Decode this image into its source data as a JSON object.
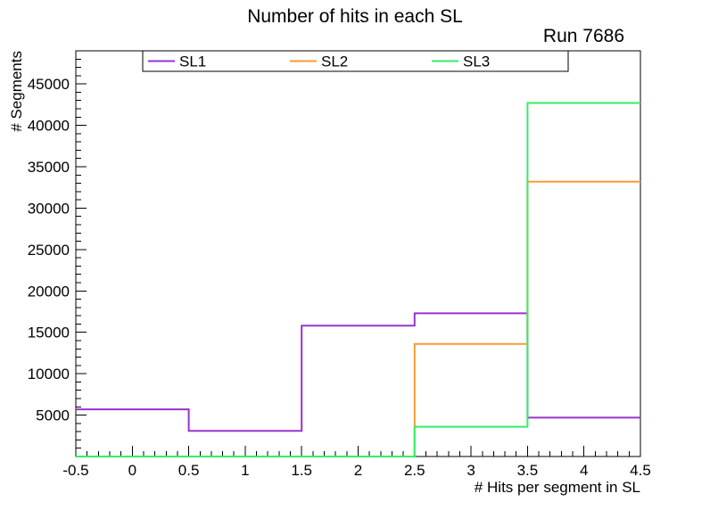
{
  "title": "Number of hits in each SL",
  "run_label": "Run 7686",
  "chart_data": {
    "type": "step-histogram",
    "title": "Number of hits in each SL",
    "annotation": "Run 7686",
    "xlabel": "# Hits per segment in SL",
    "ylabel": "# Segments",
    "xlim": [
      -0.5,
      4.5
    ],
    "ylim": [
      0,
      49000
    ],
    "grid": false,
    "bin_edges": [
      -0.5,
      0.5,
      1.5,
      2.5,
      3.5,
      4.5
    ],
    "series": [
      {
        "name": "SL1",
        "color": "#9933cc",
        "values": [
          5700,
          3100,
          15800,
          17300,
          4700
        ]
      },
      {
        "name": "SL2",
        "color": "#ff9933",
        "values": [
          0,
          0,
          0,
          13600,
          33200
        ]
      },
      {
        "name": "SL3",
        "color": "#33ee66",
        "values": [
          0,
          0,
          0,
          3600,
          42700
        ]
      }
    ],
    "x_major_ticks": [
      -0.5,
      0,
      0.5,
      1,
      1.5,
      2,
      2.5,
      3,
      3.5,
      4,
      4.5
    ],
    "x_tick_labels": [
      "-0.5",
      "0",
      "0.5",
      "1",
      "1.5",
      "2",
      "2.5",
      "3",
      "3.5",
      "4",
      "4.5"
    ],
    "y_major_ticks": [
      5000,
      10000,
      15000,
      20000,
      25000,
      30000,
      35000,
      40000,
      45000
    ],
    "y_tick_labels": [
      "5000",
      "10000",
      "15000",
      "20000",
      "25000",
      "30000",
      "35000",
      "40000",
      "45000"
    ],
    "x_minor_step": 0.1,
    "y_minor_step": 1000,
    "legend": {
      "position": "top-inside",
      "entries": [
        "SL1",
        "SL2",
        "SL3"
      ]
    }
  }
}
